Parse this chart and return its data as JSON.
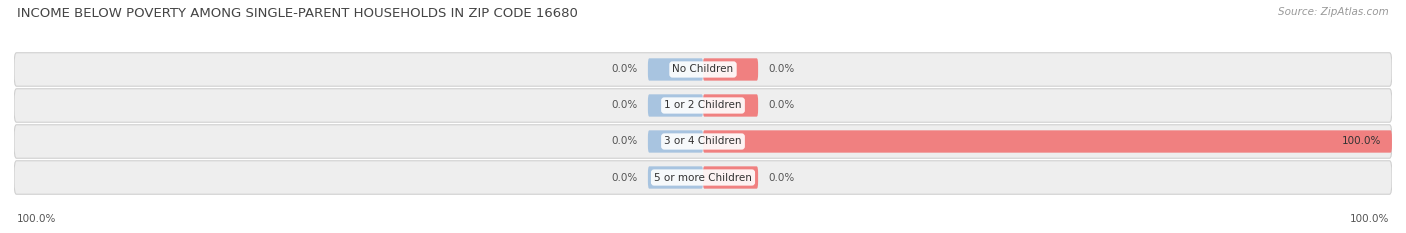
{
  "title": "INCOME BELOW POVERTY AMONG SINGLE-PARENT HOUSEHOLDS IN ZIP CODE 16680",
  "source": "Source: ZipAtlas.com",
  "categories": [
    "No Children",
    "1 or 2 Children",
    "3 or 4 Children",
    "5 or more Children"
  ],
  "single_father": [
    0.0,
    0.0,
    0.0,
    0.0
  ],
  "single_mother": [
    0.0,
    0.0,
    100.0,
    0.0
  ],
  "father_color": "#a8c4e0",
  "mother_color": "#f08080",
  "row_bg_color": "#eeeeee",
  "title_fontsize": 9.5,
  "source_fontsize": 7.5,
  "label_fontsize": 7.5,
  "category_fontsize": 7.5,
  "legend_fontsize": 8,
  "xlim": 100,
  "stub_size": 8,
  "figsize": [
    14.06,
    2.33
  ],
  "dpi": 100
}
